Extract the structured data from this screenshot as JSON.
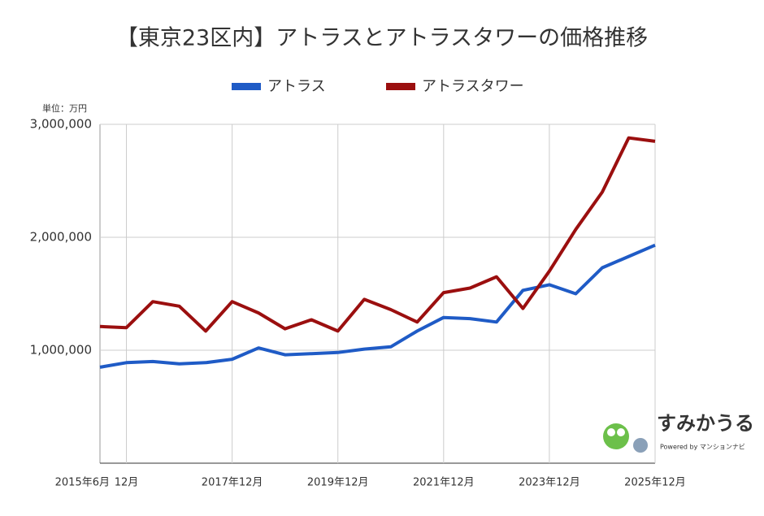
{
  "chart_data": {
    "type": "line",
    "title": "【東京23区内】アトラスとアトラスタワーの価格推移",
    "unit_label": "単位：万円",
    "categories": [
      "2015年6月",
      "12月",
      null,
      null,
      null,
      "2017年12月",
      null,
      null,
      null,
      "2019年12月",
      null,
      null,
      null,
      "2021年12月",
      null,
      null,
      null,
      "2023年12月",
      null,
      null,
      null,
      "2025年12月"
    ],
    "series": [
      {
        "name": "アトラス",
        "color": "#1f5bc6",
        "values": [
          850000,
          890000,
          900000,
          880000,
          890000,
          920000,
          1020000,
          960000,
          970000,
          980000,
          1010000,
          1030000,
          1170000,
          1290000,
          1280000,
          1250000,
          1530000,
          1580000,
          1500000,
          1730000,
          1830000,
          1930000
        ]
      },
      {
        "name": "アトラスタワー",
        "color": "#9b0f0f",
        "values": [
          1210000,
          1200000,
          1430000,
          1390000,
          1170000,
          1430000,
          1330000,
          1190000,
          1270000,
          1170000,
          1450000,
          1360000,
          1250000,
          1510000,
          1550000,
          1650000,
          1370000,
          1700000,
          2070000,
          2400000,
          2880000,
          2850000
        ]
      }
    ],
    "ylim": [
      0,
      3000000
    ],
    "yticks": [
      {
        "value": 1000000,
        "label": "1,000,000"
      },
      {
        "value": 2000000,
        "label": "2,000,000"
      },
      {
        "value": 3000000,
        "label": "3,000,000"
      }
    ],
    "grid": true
  },
  "watermark": {
    "text": "すみかうる",
    "powered": "Powered by マンションナビ"
  }
}
